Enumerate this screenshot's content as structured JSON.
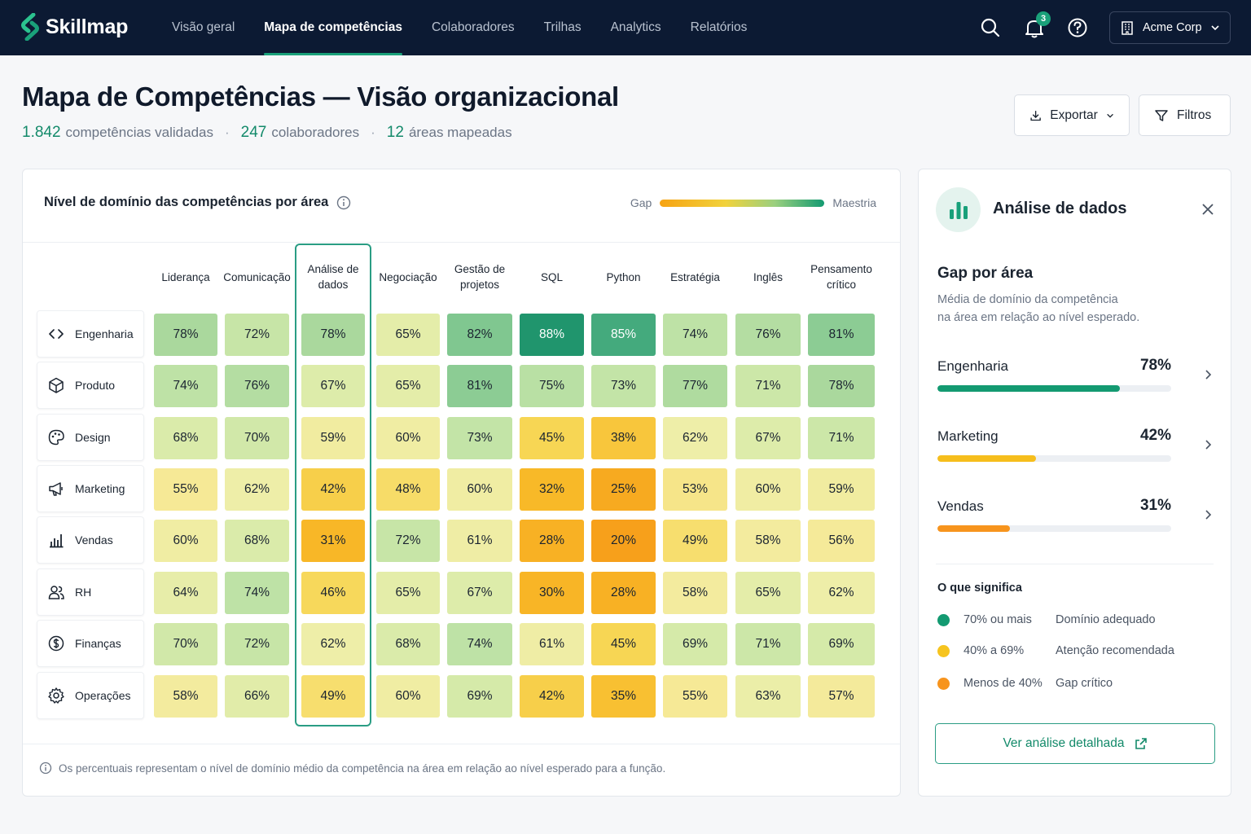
{
  "app": {
    "name": "Skillmap"
  },
  "nav": {
    "items": [
      {
        "label": "Visão geral",
        "active": false
      },
      {
        "label": "Mapa de competências",
        "active": true
      },
      {
        "label": "Colaboradores",
        "active": false
      },
      {
        "label": "Trilhas",
        "active": false
      },
      {
        "label": "Analytics",
        "active": false
      },
      {
        "label": "Relatórios",
        "active": false
      }
    ],
    "notification_count": "3",
    "org": "Acme Corp",
    "icons": [
      "search-icon",
      "bell-icon",
      "help-icon",
      "building-icon"
    ]
  },
  "header": {
    "title": "Mapa de Competências — Visão organizacional",
    "stats": [
      {
        "value": "1.842",
        "label": "competências validadas"
      },
      {
        "value": "247",
        "label": "colaboradores"
      },
      {
        "value": "12",
        "label": "áreas mapeadas"
      }
    ],
    "export_label": "Exportar",
    "filter_label": "Filtros"
  },
  "heatmap": {
    "title": "Nível de domínio das competências por área",
    "legend_low": "Gap",
    "legend_high": "Maestria",
    "columns": [
      "Liderança",
      "Comunicação",
      "Análise de dados",
      "Negociação",
      "Gestão de projetos",
      "SQL",
      "Python",
      "Estratégia",
      "Inglês",
      "Pensamento crítico"
    ],
    "highlighted_column": "Análise de dados",
    "rows": [
      {
        "area": "Engenharia",
        "icon": "code-icon",
        "values": [
          78,
          72,
          78,
          65,
          82,
          88,
          85,
          74,
          76,
          81
        ]
      },
      {
        "area": "Produto",
        "icon": "cube-icon",
        "values": [
          74,
          76,
          67,
          65,
          81,
          75,
          73,
          77,
          71,
          78
        ]
      },
      {
        "area": "Design",
        "icon": "palette-icon",
        "values": [
          68,
          70,
          59,
          60,
          73,
          45,
          38,
          62,
          67,
          71
        ]
      },
      {
        "area": "Marketing",
        "icon": "megaphone-icon",
        "values": [
          55,
          62,
          42,
          48,
          60,
          32,
          25,
          53,
          60,
          59
        ]
      },
      {
        "area": "Vendas",
        "icon": "bar-chart-icon",
        "values": [
          60,
          68,
          31,
          72,
          61,
          28,
          20,
          49,
          58,
          56
        ]
      },
      {
        "area": "RH",
        "icon": "users-icon",
        "values": [
          64,
          74,
          46,
          65,
          67,
          30,
          28,
          58,
          65,
          62
        ]
      },
      {
        "area": "Finanças",
        "icon": "dollar-icon",
        "values": [
          70,
          72,
          62,
          68,
          74,
          61,
          45,
          69,
          71,
          69
        ]
      },
      {
        "area": "Operações",
        "icon": "gear-icon",
        "values": [
          58,
          66,
          49,
          60,
          69,
          42,
          35,
          55,
          63,
          57
        ]
      }
    ],
    "footnote": "Os percentuais representam o nível de domínio médio da competência na área em relação ao nível esperado para a função."
  },
  "panel": {
    "title": "Análise de dados",
    "gap_title": "Gap por área",
    "gap_desc_1": "Média de domínio da competência",
    "gap_desc_2": "na área em relação ao nível esperado.",
    "gaps": [
      {
        "area": "Engenharia",
        "value": 78,
        "label": "78%",
        "color": "#139a71"
      },
      {
        "area": "Marketing",
        "value": 42,
        "label": "42%",
        "color": "#f6be1c"
      },
      {
        "area": "Vendas",
        "value": 31,
        "label": "31%",
        "color": "#f7941d"
      }
    ],
    "meaning_title": "O que significa",
    "meanings": [
      {
        "range": "70% ou mais",
        "desc": "Domínio adequado",
        "color": "#139a71"
      },
      {
        "range": "40% a 69%",
        "desc": "Atenção recomendada",
        "color": "#f6c41f"
      },
      {
        "range": "Menos de 40%",
        "desc": "Gap crítico",
        "color": "#f7941d"
      }
    ],
    "cta": "Ver análise detalhada"
  }
}
